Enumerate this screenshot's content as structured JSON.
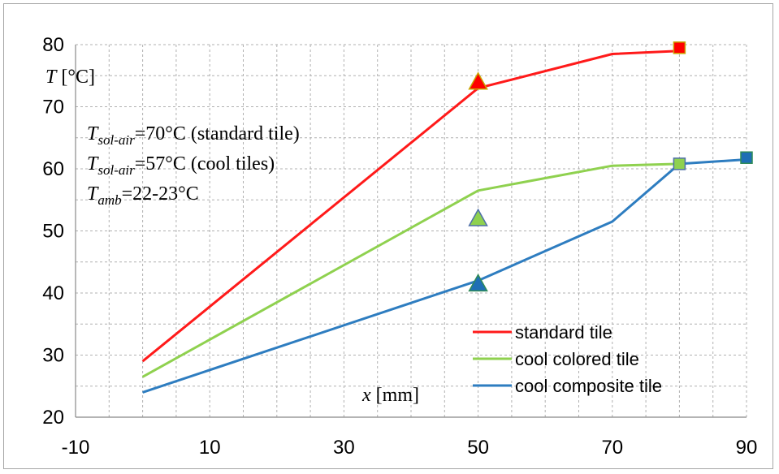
{
  "chart_data": {
    "type": "line",
    "title": "",
    "xlim": [
      -10,
      90
    ],
    "ylim": [
      20,
      80
    ],
    "x_ticks": [
      "-10",
      "10",
      "30",
      "50",
      "70",
      "90"
    ],
    "y_ticks": [
      "20",
      "30",
      "40",
      "50",
      "60",
      "70",
      "80"
    ],
    "x_minor_step": 5,
    "y_minor_step": 5,
    "grid": "dashed, major and minor",
    "ylabel": {
      "italic": "T",
      "rest": " [°C]"
    },
    "xlabel": {
      "italic": "x",
      "rest": " [mm]"
    },
    "annotations": [
      {
        "symbol": "T",
        "sub": "sol-air",
        "text": "=70°C (standard tile)"
      },
      {
        "symbol": "T",
        "sub": "sol-air",
        "text": "=57°C (cool tiles)"
      },
      {
        "symbol": "T",
        "sub": "amb",
        "text": "=22-23°C"
      }
    ],
    "legend_position": "bottom-right",
    "series": [
      {
        "name": "standard tile",
        "color": "#ff1a1a",
        "x": [
          0,
          50,
          70,
          80
        ],
        "y": [
          29,
          73,
          78.5,
          79
        ],
        "markers": [
          {
            "shape": "triangle",
            "x": 50,
            "y": 74,
            "fill": "#ff0000",
            "stroke": "#c9a400"
          },
          {
            "shape": "square",
            "x": 80,
            "y": 79.5,
            "fill": "#ff0000",
            "stroke": "#c9a400"
          }
        ]
      },
      {
        "name": "cool colored tile",
        "color": "#8fd14f",
        "x": [
          0,
          50,
          70,
          80
        ],
        "y": [
          26.5,
          56.5,
          60.5,
          60.8
        ],
        "markers": [
          {
            "shape": "triangle",
            "x": 50,
            "y": 52,
            "fill": "#8fd14f",
            "stroke": "#4f6fa8"
          },
          {
            "shape": "square",
            "x": 80,
            "y": 60.8,
            "fill": "#8fd14f",
            "stroke": "#4f6fa8"
          }
        ]
      },
      {
        "name": "cool composite tile",
        "color": "#2e7dc0",
        "x": [
          0,
          50,
          70,
          80,
          90
        ],
        "y": [
          24,
          42,
          51.5,
          60.8,
          61.5
        ],
        "markers": [
          {
            "shape": "triangle",
            "x": 50,
            "y": 41.5,
            "fill": "#1f6fb5",
            "stroke": "#2e8b57"
          },
          {
            "shape": "square",
            "x": 90,
            "y": 61.8,
            "fill": "#1f6fb5",
            "stroke": "#2e8b57"
          }
        ]
      }
    ]
  }
}
